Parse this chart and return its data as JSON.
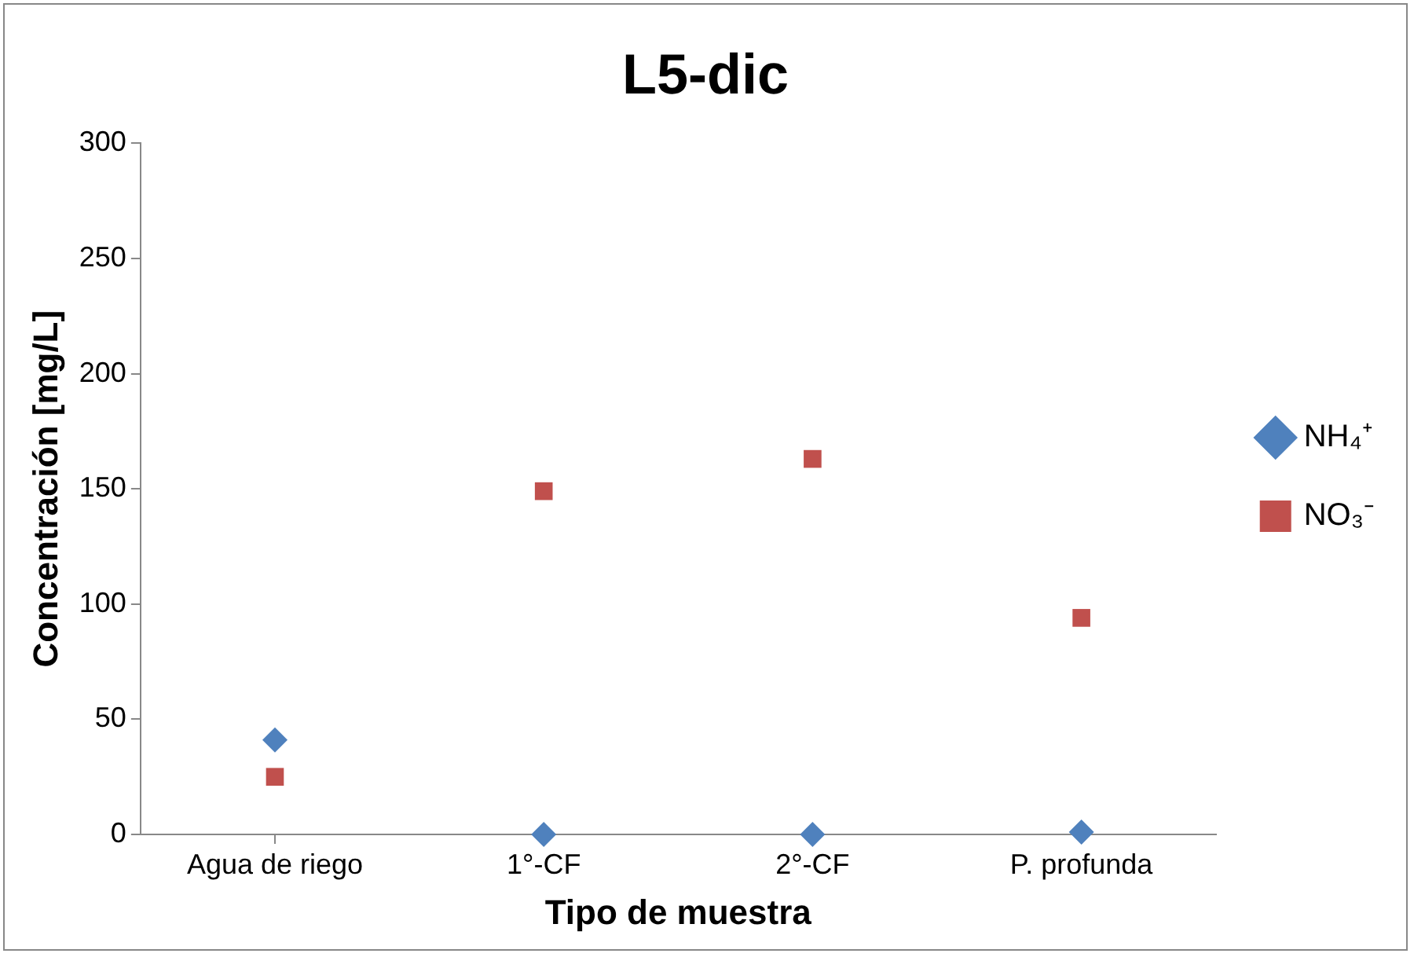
{
  "chart_data": {
    "type": "scatter",
    "title": "L5-dic",
    "xlabel": "Tipo de muestra",
    "ylabel": "Concentración [mg/L]",
    "categories": [
      "Agua de riego",
      "1°-CF",
      "2°-CF",
      "P. profunda"
    ],
    "series": [
      {
        "name": "NH₄⁺",
        "color": "#4f81bd",
        "marker": "diamond",
        "values": [
          41,
          0,
          0,
          1
        ]
      },
      {
        "name": "NO₃⁻",
        "color": "#c0504d",
        "marker": "square",
        "values": [
          25,
          149,
          163,
          94
        ]
      }
    ],
    "ylim": [
      0,
      300
    ],
    "yticks": [
      0,
      50,
      100,
      150,
      200,
      250,
      300
    ],
    "grid": false,
    "legend": "right"
  }
}
